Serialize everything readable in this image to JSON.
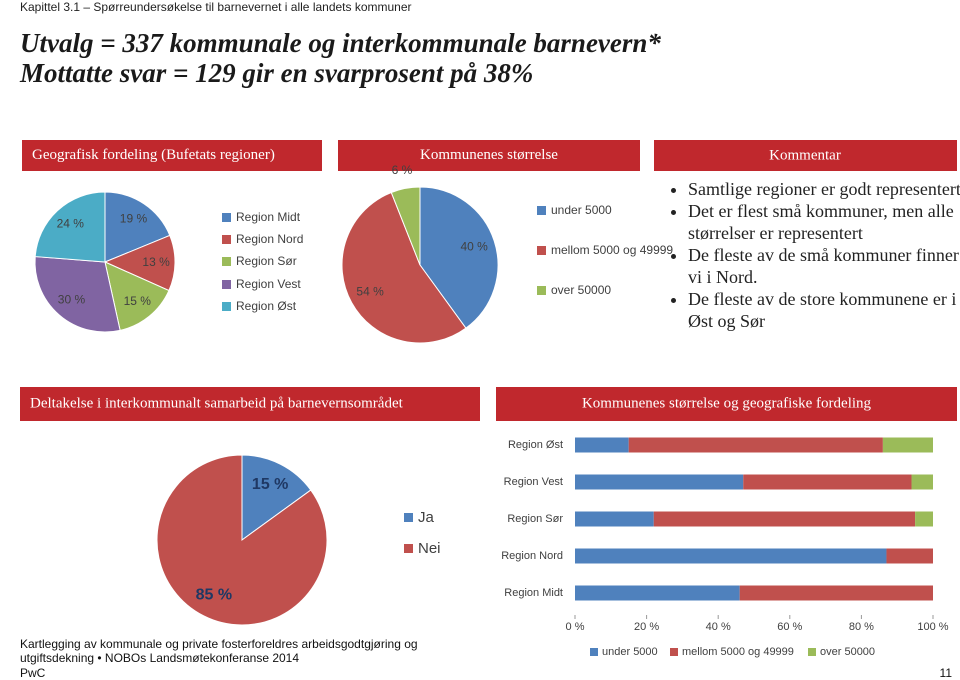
{
  "header": "Kapittel 3.1 – Spørreundersøkelse til barnevernet i alle landets kommuner",
  "title_lines": [
    "Utvalg = 337 kommunale og interkommunale barnevern*",
    "Mottatte svar = 129 gir en svarprosent på 38%"
  ],
  "commentary": {
    "title": "Kommentar",
    "bullets": [
      "Samtlige regioner er godt representert",
      "Det er flest små kommuner, men alle størrelser er representert",
      "De fleste av de små kommuner finner vi i Nord.",
      "De fleste av de store kommunene er i Øst og Sør"
    ]
  },
  "footer": {
    "source": "Kartlegging av kommunale og private fosterforeldres arbeidsgodtgjøring og utgiftsdekning • NOBOs Landsmøtekonferanse 2014",
    "company": "PwC",
    "page": "11"
  },
  "chart_data": [
    {
      "type": "pie",
      "title": "Geografisk fordeling (Bufetats regioner)",
      "categories": [
        "Region Midt",
        "Region Nord",
        "Region Sør",
        "Region Vest",
        "Region Øst"
      ],
      "values": [
        19,
        13,
        15,
        30,
        24
      ],
      "value_labels": [
        "19 %",
        "13 %",
        "15 %",
        "30 %",
        "24 %"
      ],
      "colors": [
        "#4f81bd",
        "#c0504d",
        "#9bbb59",
        "#8064a2",
        "#4bacc6"
      ]
    },
    {
      "type": "pie",
      "title": "Kommunenes størrelse",
      "categories": [
        "under 5000",
        "mellom 5000 og 49999",
        "over 50000"
      ],
      "values": [
        40,
        54,
        6
      ],
      "value_labels": [
        "40 %",
        "54 %",
        "6 %"
      ],
      "colors": [
        "#4f81bd",
        "#c0504d",
        "#9bbb59"
      ]
    },
    {
      "type": "pie",
      "title": "Deltakelse i interkommunalt samarbeid på barnevernsområdet",
      "categories": [
        "Ja",
        "Nei"
      ],
      "values": [
        15,
        85
      ],
      "value_labels": [
        "15 %",
        "85 %"
      ],
      "colors": [
        "#4f81bd",
        "#c0504d"
      ]
    },
    {
      "type": "bar",
      "orientation": "horizontal",
      "stacked": true,
      "title": "Kommunenes størrelse og geografiske fordeling",
      "categories": [
        "Region Øst",
        "Region Vest",
        "Region Sør",
        "Region Nord",
        "Region Midt"
      ],
      "series": [
        {
          "name": "under 5000",
          "color": "#4f81bd",
          "values": [
            15,
            47,
            22,
            87,
            46
          ]
        },
        {
          "name": "mellom 5000 og 49999",
          "color": "#c0504d",
          "values": [
            71,
            47,
            73,
            13,
            54
          ]
        },
        {
          "name": "over 50000",
          "color": "#9bbb59",
          "values": [
            14,
            6,
            5,
            0,
            0
          ]
        }
      ],
      "xlim": [
        0,
        100
      ],
      "xticks": [
        {
          "value": 0,
          "label": "0 %"
        },
        {
          "value": 20,
          "label": "20 %"
        },
        {
          "value": 40,
          "label": "40 %"
        },
        {
          "value": 60,
          "label": "60 %"
        },
        {
          "value": 80,
          "label": "80 %"
        },
        {
          "value": 100,
          "label": "100 %"
        }
      ]
    }
  ]
}
